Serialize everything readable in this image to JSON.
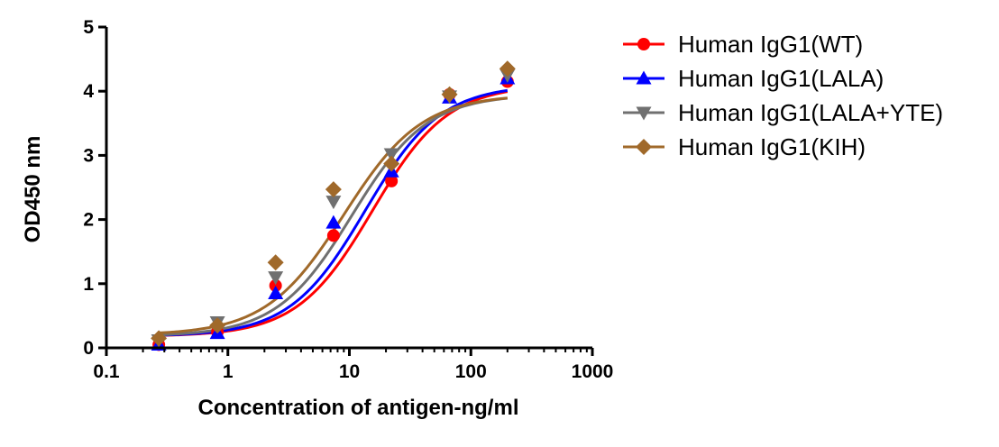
{
  "chart_data": {
    "type": "scatter",
    "title": "",
    "xlabel": "Concentration of antigen-ng/ml",
    "ylabel": "OD450 nm",
    "x_scale": "log",
    "xlim": [
      0.1,
      1000
    ],
    "ylim": [
      0,
      5
    ],
    "x_ticks": [
      "0.1",
      "1",
      "10",
      "100",
      "1000"
    ],
    "y_ticks": [
      "0",
      "1",
      "2",
      "3",
      "4",
      "5"
    ],
    "grid": false,
    "legend_position": "right",
    "x": [
      0.27,
      0.82,
      2.47,
      7.4,
      22.2,
      66.7,
      200
    ],
    "series": [
      {
        "name": "Human IgG1(WT)",
        "color": "#ff0000",
        "marker": "circle",
        "values": [
          0.05,
          0.25,
          0.97,
          1.75,
          2.6,
          3.95,
          4.15
        ],
        "fit": {
          "bottom": 0.18,
          "top": 4.1,
          "ec50": 15.5,
          "hill": 1.4
        }
      },
      {
        "name": "Human IgG1(LALA)",
        "color": "#0000ff",
        "marker": "triangle-up",
        "values": [
          0.05,
          0.23,
          0.85,
          1.95,
          2.75,
          3.9,
          4.2
        ],
        "fit": {
          "bottom": 0.18,
          "top": 4.1,
          "ec50": 13.5,
          "hill": 1.4
        }
      },
      {
        "name": "Human IgG1(LALA+YTE)",
        "color": "#707070",
        "marker": "triangle-down",
        "values": [
          0.12,
          0.4,
          1.1,
          2.28,
          3.02,
          3.92,
          4.25
        ],
        "fit": {
          "bottom": 0.18,
          "top": 3.95,
          "ec50": 10.5,
          "hill": 1.4
        }
      },
      {
        "name": "Human IgG1(KIH)",
        "color": "#a0692a",
        "marker": "diamond",
        "values": [
          0.15,
          0.35,
          1.33,
          2.47,
          2.87,
          3.95,
          4.35
        ],
        "fit": {
          "bottom": 0.2,
          "top": 3.95,
          "ec50": 9.0,
          "hill": 1.35
        }
      }
    ]
  }
}
